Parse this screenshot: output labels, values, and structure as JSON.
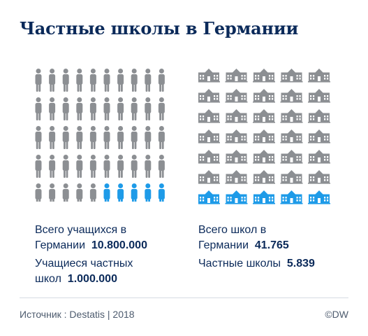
{
  "title": "Частные школы в Германии",
  "chart_data": {
    "type": "pictogram",
    "panels": [
      {
        "icon": "person-icon",
        "rows": 5,
        "cols": 10,
        "total_icons": 50,
        "highlighted_icons": 5,
        "stats": [
          {
            "label": "Всего учащихся в Германии",
            "value": "10.800.000"
          },
          {
            "label": "Учащиеся частных школ",
            "value": "1.000.000"
          }
        ]
      },
      {
        "icon": "school-building-icon",
        "rows": 7,
        "cols": 5,
        "total_icons": 35,
        "highlighted_icons": 5,
        "stats": [
          {
            "label": "Всего школ в Германии",
            "value": "41.765"
          },
          {
            "label": "Частные школы",
            "value": "5.839"
          }
        ]
      }
    ],
    "colors": {
      "base": "#8c8f93",
      "highlight": "#1e9be8"
    }
  },
  "texts": {
    "s1_line1": "Всего учащихся в",
    "s1_line2": "Германии",
    "s1_value": "10.800.000",
    "s2_line1": "Учащиеся частных",
    "s2_line2": "школ",
    "s2_value": "1.000.000",
    "s3_line1": "Всего школ в",
    "s3_line2": "Германии",
    "s3_value": "41.765",
    "s4_line1": "Частные школы",
    "s4_value": "5.839"
  },
  "footer": {
    "source": "Источник : Destatis | 2018",
    "brand": "©DW"
  }
}
